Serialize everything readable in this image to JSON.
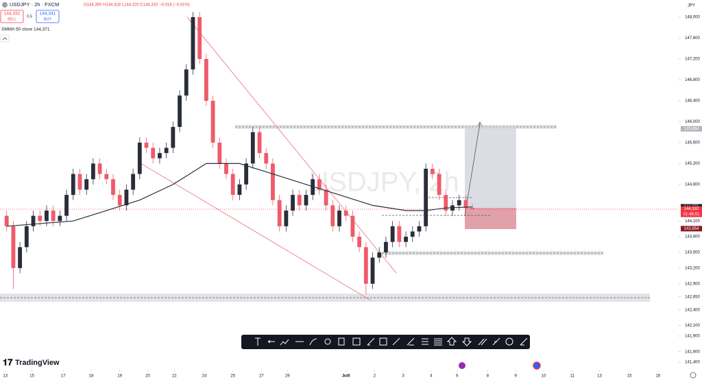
{
  "header": {
    "symbol": "USDJPY · 2h · FXCM",
    "ohlc": "O144,350 H144,428 L144,320 C144,332 −0,018 (−0,01%)",
    "sell_price": "144,332",
    "sell": "SELL",
    "spread": "0,5",
    "buy_price": "144,341",
    "buy": "BUY",
    "indicator": "SMMA 50 close  144,371"
  },
  "axis_unit": "JPY",
  "watermark": "USDJPY, 2h",
  "branding": "TradingView",
  "countdown": "01:46:02",
  "price_tags": [
    {
      "value": 145.864,
      "label": "145,864",
      "color": "#b2b5be"
    },
    {
      "value": 144.371,
      "label": "144,371",
      "color": "#131722"
    },
    {
      "value": 144.34,
      "label": "144,340",
      "color": "#131722"
    },
    {
      "value": 144.332,
      "label": "144,332",
      "color": "#f23645"
    },
    {
      "value": 143.954,
      "label": "143,954",
      "color": "#8b1a24"
    }
  ],
  "chart_data": {
    "type": "candlestick",
    "up_color": "#2a2e39",
    "down_color": "#ef5b6a",
    "xlim": [
      -1,
      101
    ],
    "ylim": [
      141.4,
      148.0
    ],
    "open": [
      144.2,
      144.0,
      143.2,
      143.6,
      144.0,
      144.2,
      144.1,
      144.3,
      144.1,
      144.2,
      144.6,
      145.0,
      144.7,
      144.9,
      145.2,
      145.0,
      144.9,
      144.6,
      144.4,
      144.7,
      145.0,
      145.6,
      145.5,
      145.3,
      145.4,
      145.5,
      145.9,
      146.5,
      147.0,
      148.0,
      147.2,
      146.4,
      145.6,
      145.2,
      145.0,
      144.6,
      144.8,
      145.2,
      145.8,
      145.4,
      145.2,
      144.5,
      144.0,
      144.3,
      144.6,
      144.4,
      144.6,
      144.9,
      144.7,
      144.4,
      144.0,
      144.3,
      144.2,
      143.8,
      143.6,
      142.9,
      143.4,
      143.5,
      143.7,
      144.0,
      143.7,
      143.8,
      143.9,
      144.0,
      145.1,
      145.0,
      144.6,
      144.3,
      144.4,
      144.5,
      144.35
    ],
    "high": [
      144.3,
      144.1,
      143.7,
      144.1,
      144.3,
      144.3,
      144.4,
      144.4,
      144.3,
      144.7,
      145.1,
      145.1,
      145.0,
      145.3,
      145.3,
      145.1,
      145.0,
      144.7,
      144.8,
      145.1,
      145.7,
      145.7,
      145.6,
      145.5,
      145.6,
      146.0,
      146.6,
      147.1,
      148.1,
      148.1,
      147.3,
      146.5,
      145.7,
      145.3,
      145.1,
      144.9,
      145.3,
      145.9,
      145.9,
      145.5,
      145.3,
      144.6,
      144.4,
      144.7,
      144.7,
      144.7,
      145.0,
      145.0,
      144.8,
      144.5,
      144.4,
      144.4,
      144.3,
      143.9,
      143.7,
      143.5,
      143.6,
      143.8,
      144.1,
      144.1,
      143.9,
      144.0,
      144.1,
      145.2,
      145.2,
      145.1,
      144.7,
      144.5,
      144.6,
      144.6,
      144.428
    ],
    "low": [
      143.9,
      142.8,
      143.1,
      143.5,
      143.9,
      144.0,
      144.0,
      144.0,
      144.0,
      144.1,
      144.5,
      144.6,
      144.6,
      144.8,
      144.9,
      144.8,
      144.5,
      144.3,
      144.3,
      144.6,
      144.9,
      145.4,
      145.2,
      145.2,
      145.3,
      145.4,
      145.8,
      146.4,
      146.9,
      147.1,
      146.3,
      145.5,
      145.1,
      144.9,
      144.5,
      144.5,
      144.7,
      145.1,
      145.3,
      145.1,
      144.4,
      143.9,
      143.9,
      144.2,
      144.3,
      144.3,
      144.5,
      144.6,
      144.3,
      143.9,
      143.9,
      144.1,
      143.7,
      143.5,
      142.7,
      142.8,
      143.3,
      143.4,
      143.6,
      143.6,
      143.6,
      143.7,
      143.8,
      143.9,
      144.9,
      144.5,
      144.2,
      144.2,
      144.3,
      144.3,
      144.32
    ],
    "close": [
      144.0,
      143.2,
      143.6,
      144.0,
      144.2,
      144.1,
      144.3,
      144.1,
      144.2,
      144.6,
      145.0,
      144.7,
      144.9,
      145.2,
      145.0,
      144.9,
      144.6,
      144.4,
      144.7,
      145.0,
      145.6,
      145.5,
      145.3,
      145.4,
      145.5,
      145.9,
      146.5,
      147.0,
      148.0,
      147.2,
      146.4,
      145.6,
      145.2,
      145.0,
      144.6,
      144.8,
      145.2,
      145.8,
      145.4,
      145.2,
      144.5,
      144.0,
      144.3,
      144.6,
      144.4,
      144.6,
      144.9,
      144.7,
      144.4,
      144.0,
      144.3,
      144.2,
      143.8,
      143.6,
      142.9,
      143.4,
      143.5,
      143.7,
      144.0,
      143.7,
      143.8,
      143.9,
      144.0,
      145.1,
      145.0,
      144.6,
      144.3,
      144.4,
      144.5,
      144.35,
      144.332
    ],
    "smma": {
      "name": "SMMA 50 close",
      "color": "#2a2e39",
      "x": [
        0,
        10,
        20,
        25,
        30,
        35,
        40,
        45,
        50,
        55,
        60,
        63,
        66,
        70
      ],
      "values": [
        144.0,
        144.1,
        144.5,
        144.8,
        145.2,
        145.2,
        145.0,
        144.8,
        144.6,
        144.4,
        144.3,
        144.3,
        144.35,
        144.371
      ]
    },
    "xticks": [
      {
        "value": -0.2,
        "label": "13"
      },
      {
        "value": 3.8,
        "label": "15"
      },
      {
        "value": 8.5,
        "label": "17"
      },
      {
        "value": 12.7,
        "label": "18"
      },
      {
        "value": 17,
        "label": "19"
      },
      {
        "value": 21.2,
        "label": "20"
      },
      {
        "value": 25.2,
        "label": "22"
      },
      {
        "value": 29.7,
        "label": "24"
      },
      {
        "value": 34,
        "label": "25"
      },
      {
        "value": 38.3,
        "label": "27"
      },
      {
        "value": 42.2,
        "label": "29"
      },
      {
        "value": 51,
        "label": "Juill"
      },
      {
        "value": 55.3,
        "label": "2"
      },
      {
        "value": 59.6,
        "label": "3"
      },
      {
        "value": 63.8,
        "label": "4"
      },
      {
        "value": 67.7,
        "label": "6"
      },
      {
        "value": 72.3,
        "label": "8"
      },
      {
        "value": 76.5,
        "label": "9"
      },
      {
        "value": 80.7,
        "label": "10"
      },
      {
        "value": 85,
        "label": "11"
      },
      {
        "value": 89.1,
        "label": "13"
      },
      {
        "value": 93.6,
        "label": "15"
      },
      {
        "value": 97.9,
        "label": "16"
      }
    ],
    "yticks": [
      {
        "value": 148.0,
        "label": "148,000"
      },
      {
        "value": 147.6,
        "label": "147,600"
      },
      {
        "value": 147.2,
        "label": "147,200"
      },
      {
        "value": 146.8,
        "label": "146,800"
      },
      {
        "value": 146.4,
        "label": "146,400"
      },
      {
        "value": 146.0,
        "label": "146,000"
      },
      {
        "value": 145.6,
        "label": "145,600"
      },
      {
        "value": 145.2,
        "label": "145,200"
      },
      {
        "value": 144.8,
        "label": "144,800"
      },
      {
        "value": 144.1,
        "label": "144,100"
      },
      {
        "value": 143.8,
        "label": "143,800"
      },
      {
        "value": 143.5,
        "label": "143,500"
      },
      {
        "value": 143.2,
        "label": "143,200"
      },
      {
        "value": 142.9,
        "label": "142,900"
      },
      {
        "value": 142.65,
        "label": "142,650"
      },
      {
        "value": 142.4,
        "label": "142,400"
      },
      {
        "value": 142.1,
        "label": "142,100"
      },
      {
        "value": 141.9,
        "label": "141,900"
      },
      {
        "value": 141.6,
        "label": "141,600"
      },
      {
        "value": 141.4,
        "label": "141,400"
      }
    ]
  }
}
